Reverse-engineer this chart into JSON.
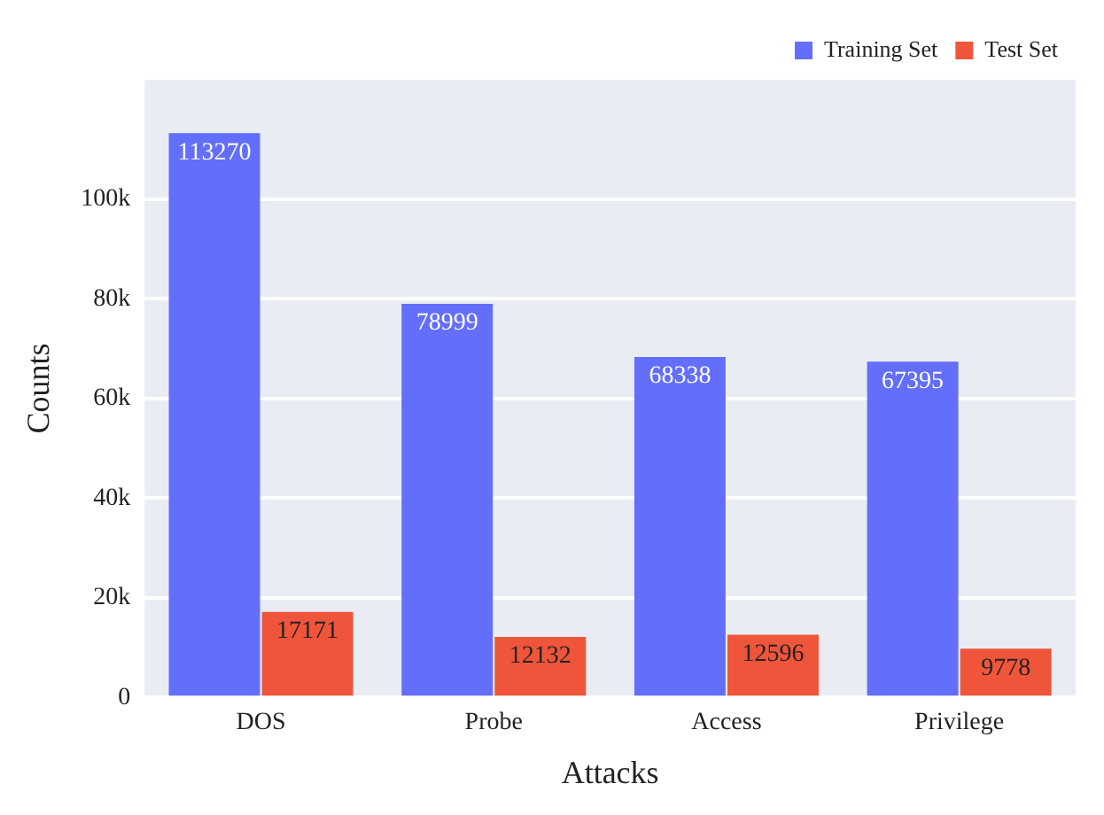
{
  "chart_data": {
    "type": "bar",
    "xlabel": "Attacks",
    "ylabel": "Counts",
    "categories": [
      "DOS",
      "Probe",
      "Access",
      "Privilege"
    ],
    "series": [
      {
        "name": "Training Set",
        "color": "#636efa",
        "values": [
          113270,
          78999,
          68338,
          67395
        ]
      },
      {
        "name": "Test Set",
        "color": "#ef553b",
        "values": [
          17171,
          12132,
          12596,
          9778
        ]
      }
    ],
    "ylim": [
      0,
      124000
    ],
    "yticks": [
      0,
      {
        "value": 20000,
        "label": "20k"
      },
      {
        "value": 40000,
        "label": "40k"
      },
      {
        "value": 60000,
        "label": "60k"
      },
      {
        "value": 80000,
        "label": "80k"
      },
      {
        "value": 100000,
        "label": "100k"
      }
    ],
    "grid": "y",
    "legend": "top right",
    "data_labels": true
  }
}
